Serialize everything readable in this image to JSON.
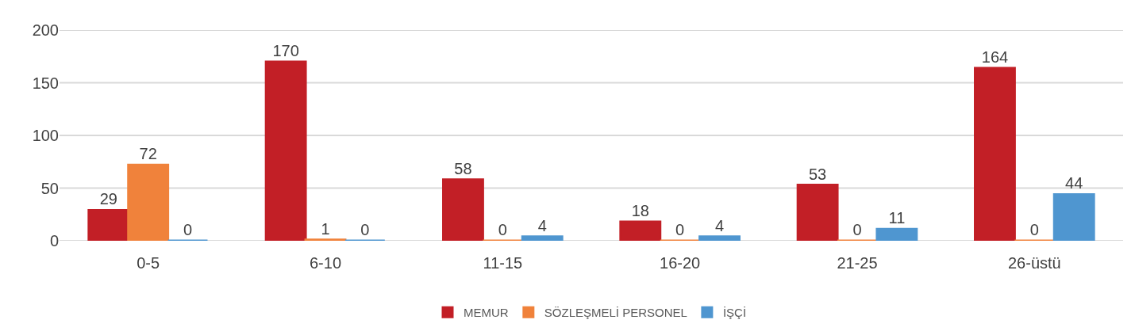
{
  "chart_data": {
    "type": "bar",
    "categories": [
      "0-5",
      "6-10",
      "11-15",
      "16-20",
      "21-25",
      "26-üstü"
    ],
    "series": [
      {
        "name": "MEMUR",
        "color": "#c21f26",
        "values": [
          29,
          170,
          58,
          18,
          53,
          164
        ]
      },
      {
        "name": "SÖZLEŞMELİ PERSONEL",
        "color": "#f0823b",
        "values": [
          72,
          1,
          0,
          0,
          0,
          0
        ]
      },
      {
        "name": "İŞÇİ",
        "color": "#4f96d0",
        "values": [
          0,
          0,
          4,
          4,
          11,
          44
        ]
      }
    ],
    "ylim": [
      0,
      200
    ],
    "yticks": [
      0,
      50,
      100,
      150,
      200
    ],
    "grid": "y",
    "legend": "bottom",
    "data_labels": true
  }
}
